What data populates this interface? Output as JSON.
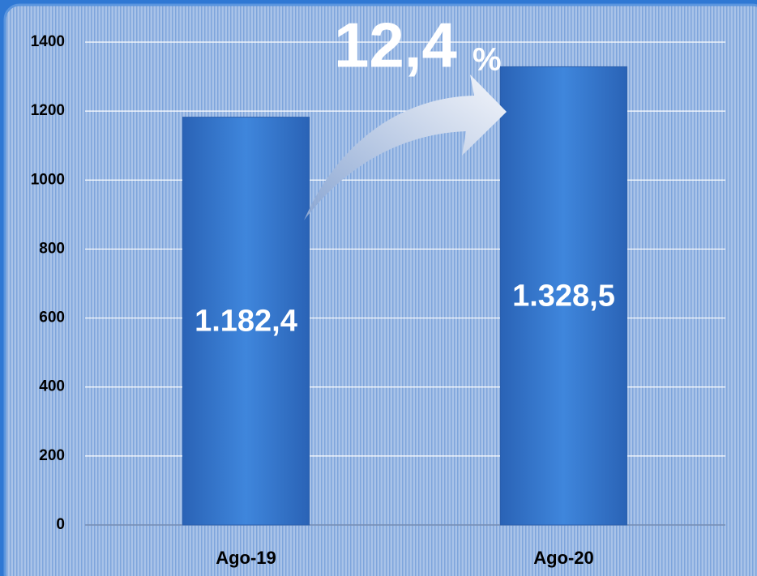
{
  "chart_data": {
    "type": "bar",
    "categories": [
      "Ago-19",
      "Ago-20"
    ],
    "values": [
      1182.4,
      1328.5
    ],
    "value_labels": [
      "1.182,4",
      "1.328,5"
    ],
    "color": "#3a7fd6",
    "annotation": "12,4",
    "annotation_unit": "%",
    "ylim": [
      0,
      1400
    ],
    "yticks": [
      0,
      200,
      400,
      600,
      800,
      1000,
      1200,
      1400
    ],
    "grid": true
  }
}
